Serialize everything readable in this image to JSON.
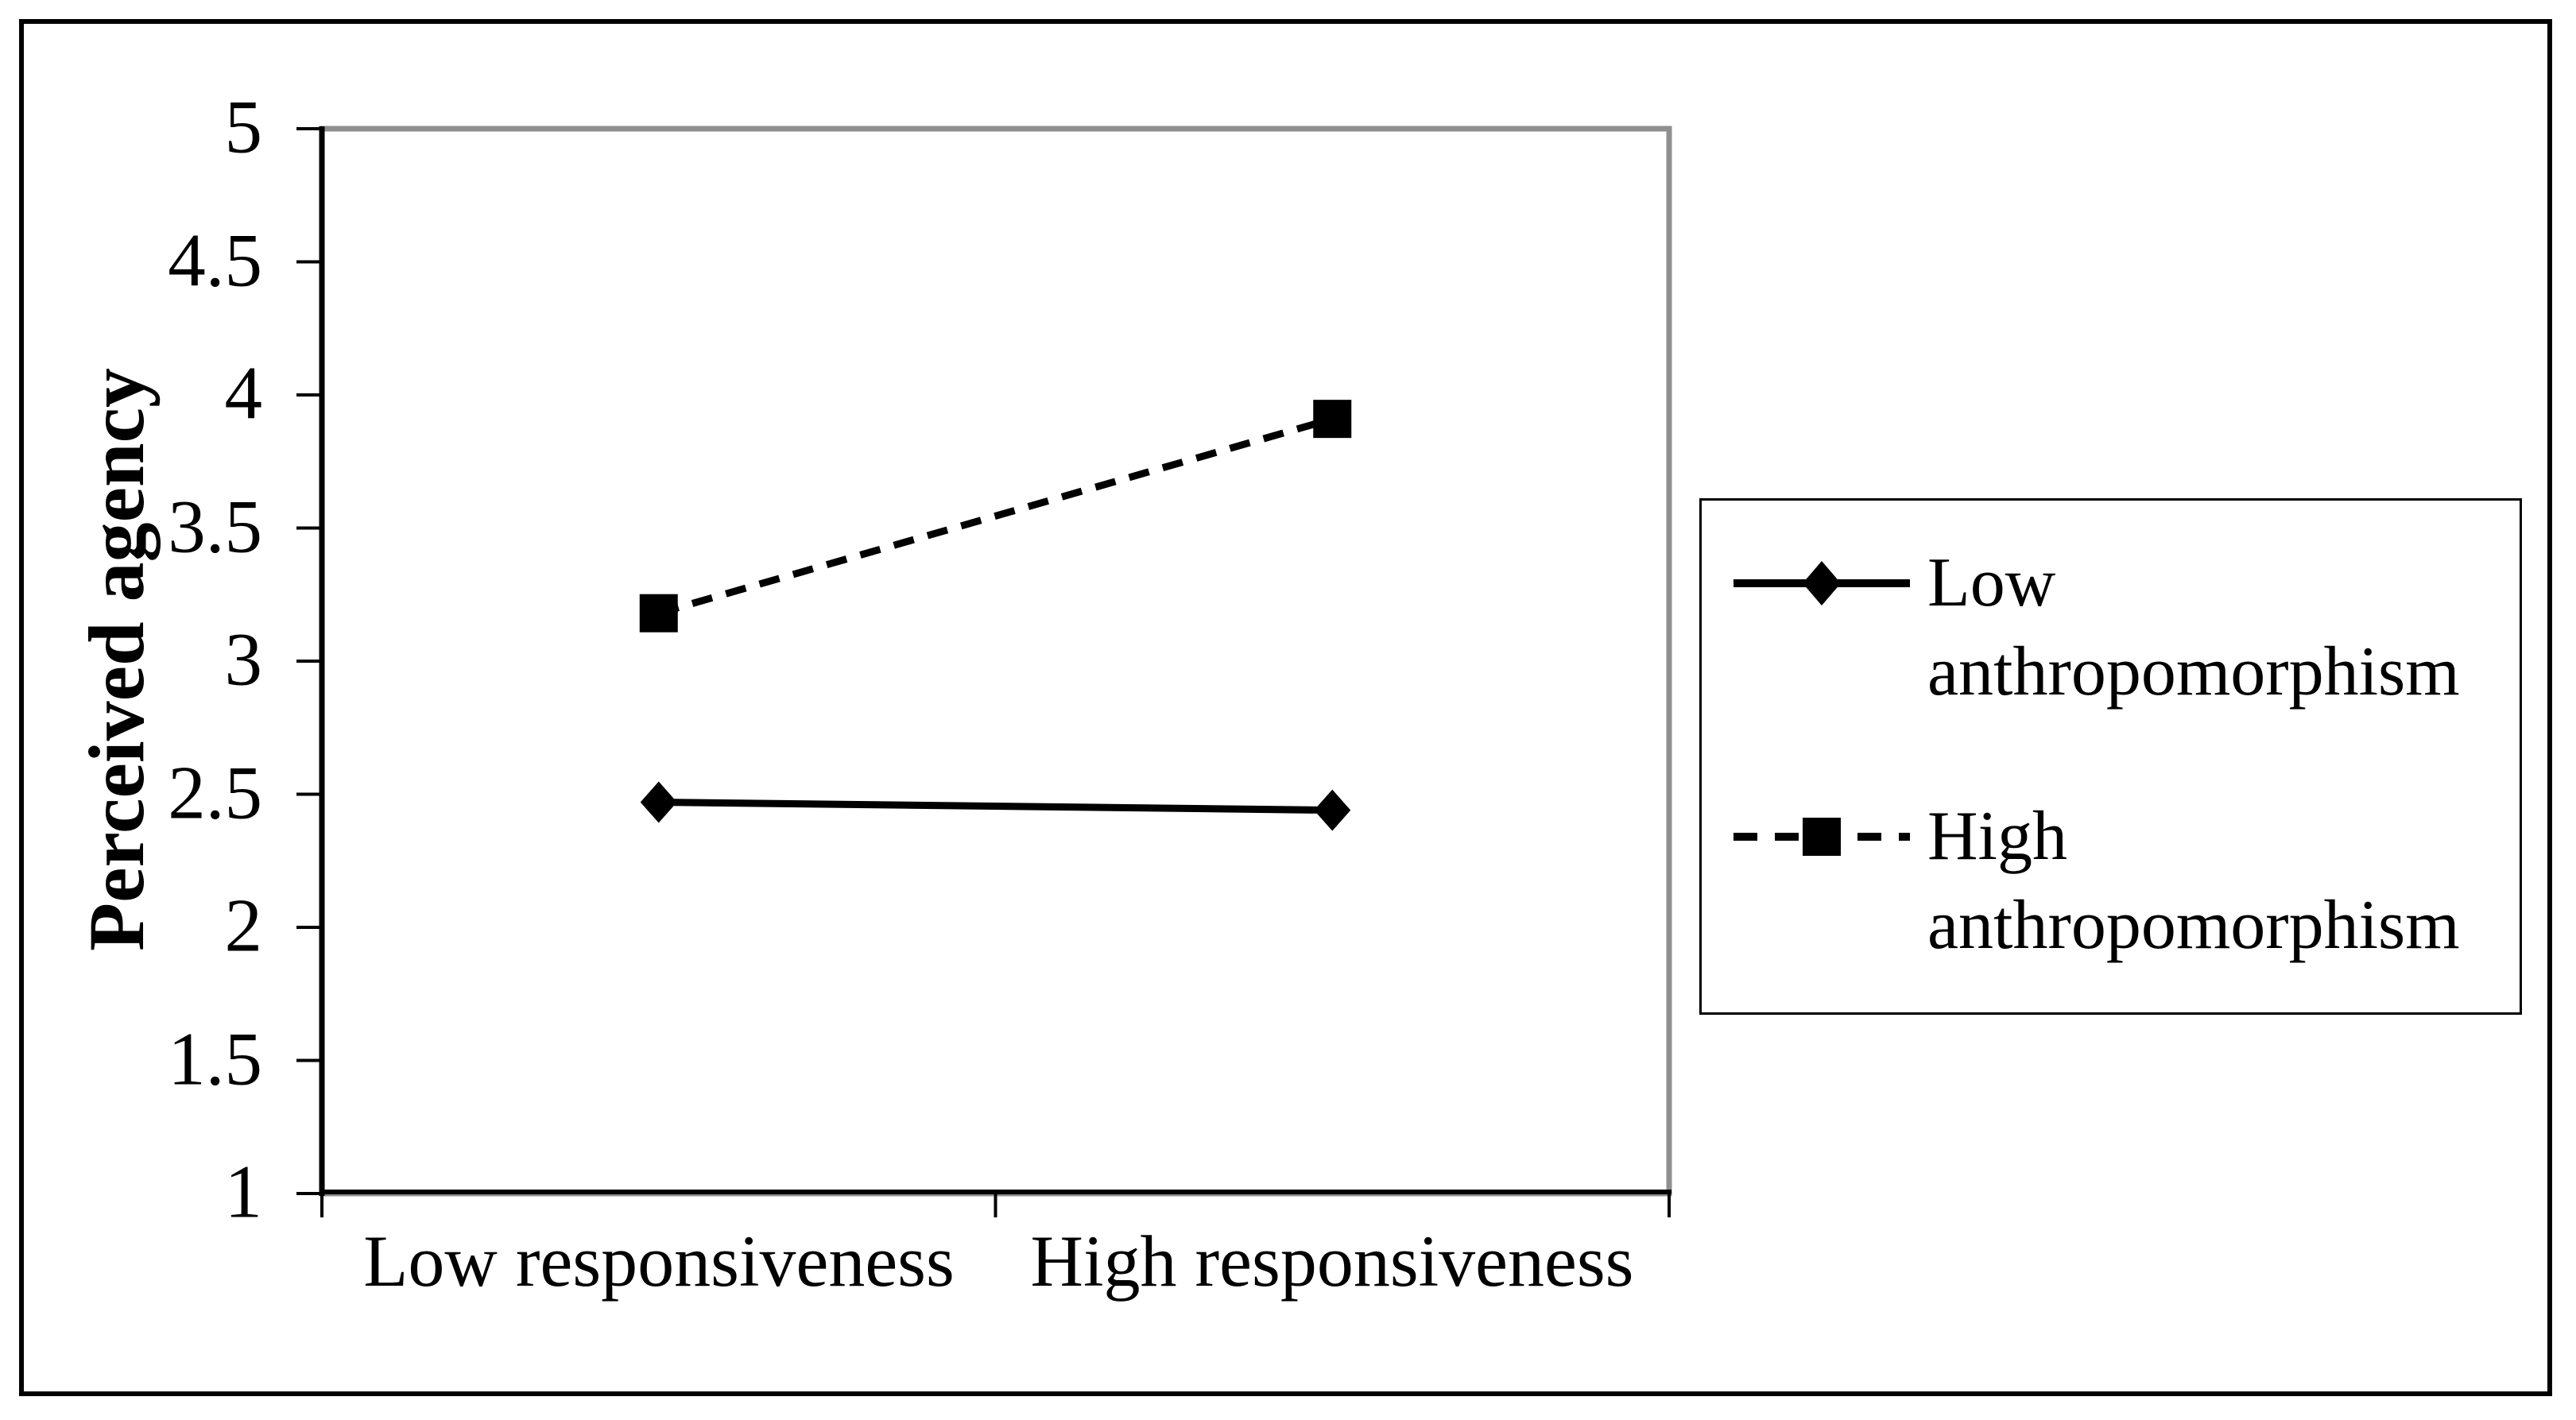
{
  "chart_data": {
    "type": "line",
    "title": "",
    "categories": [
      "Low responsiveness",
      "High responsiveness"
    ],
    "series": [
      {
        "name": "Low anthropomorphism",
        "values": [
          2.47,
          2.44
        ],
        "line_style": "solid",
        "marker": "diamond",
        "color": "#000000"
      },
      {
        "name": "High anthropomorphism",
        "values": [
          3.18,
          3.91
        ],
        "line_style": "dashed",
        "marker": "square",
        "color": "#000000"
      }
    ],
    "xlabel": "",
    "ylabel": "Perceived agency",
    "ylim": [
      1,
      5
    ],
    "ytick_step": 0.5,
    "ytick_labels": [
      "5",
      "4.5",
      "4",
      "3.5",
      "3",
      "2.5",
      "2",
      "1.5",
      "1"
    ],
    "grid": false,
    "legend_position": "right",
    "plot_border_color": "#8f8f8f",
    "axis_color": "#000000",
    "background_color": "#ffffff"
  }
}
